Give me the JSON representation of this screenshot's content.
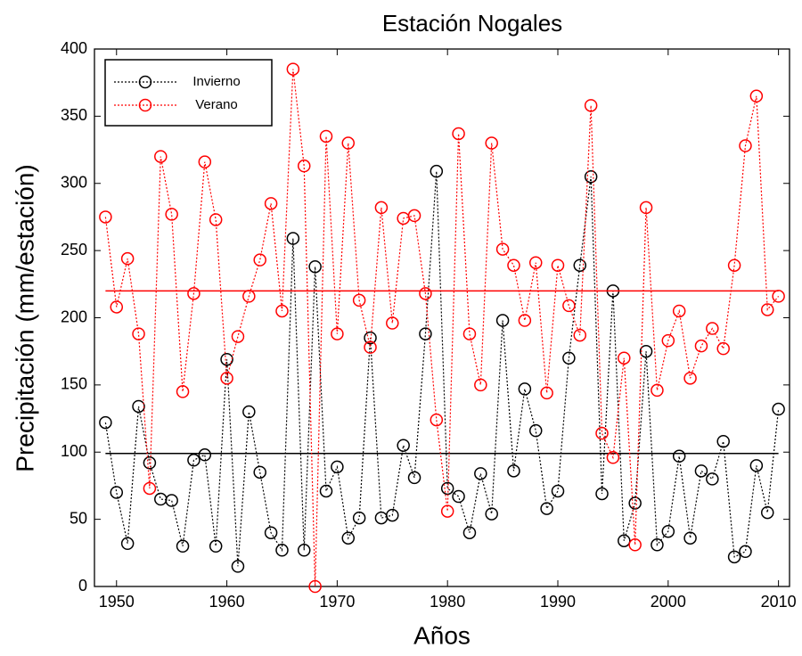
{
  "chart_data": {
    "type": "line",
    "title": "Estación Nogales",
    "xlabel": "Años",
    "ylabel": "Precipitación (mm/estación)",
    "x": [
      1949,
      1950,
      1951,
      1952,
      1953,
      1954,
      1955,
      1956,
      1957,
      1958,
      1959,
      1960,
      1961,
      1962,
      1963,
      1964,
      1965,
      1966,
      1967,
      1968,
      1969,
      1970,
      1971,
      1972,
      1973,
      1974,
      1975,
      1976,
      1977,
      1978,
      1979,
      1980,
      1981,
      1982,
      1983,
      1984,
      1985,
      1986,
      1987,
      1988,
      1989,
      1990,
      1991,
      1992,
      1993,
      1994,
      1995,
      1996,
      1997,
      1998,
      1999,
      2000,
      2001,
      2002,
      2003,
      2004,
      2005,
      2006,
      2007,
      2008,
      2009,
      2010
    ],
    "series": [
      {
        "name": "Invierno",
        "color": "#000000",
        "mean": 99,
        "values": [
          122,
          70,
          32,
          134,
          92,
          65,
          64,
          30,
          94,
          98,
          30,
          169,
          15,
          130,
          85,
          40,
          27,
          259,
          27,
          238,
          71,
          89,
          36,
          51,
          185,
          51,
          53,
          105,
          81,
          188,
          309,
          73,
          67,
          40,
          84,
          54,
          198,
          86,
          147,
          116,
          58,
          71,
          170,
          239,
          305,
          69,
          220,
          34,
          62,
          175,
          31,
          41,
          97,
          36,
          86,
          80,
          108,
          22,
          26,
          90,
          55,
          132
        ]
      },
      {
        "name": "Verano",
        "color": "#ff0000",
        "mean": 220,
        "values": [
          275,
          208,
          244,
          188,
          73,
          320,
          277,
          145,
          218,
          316,
          273,
          155,
          186,
          216,
          243,
          285,
          205,
          385,
          313,
          0,
          335,
          188,
          330,
          213,
          178,
          282,
          196,
          274,
          276,
          218,
          124,
          56,
          337,
          188,
          150,
          330,
          251,
          239,
          198,
          241,
          144,
          239,
          209,
          187,
          358,
          114,
          96,
          170,
          31,
          282,
          146,
          183,
          205,
          155,
          179,
          192,
          177,
          239,
          328,
          365,
          206,
          216
        ]
      }
    ],
    "xlim": [
      1948,
      2011
    ],
    "xticks": [
      1950,
      1960,
      1970,
      1980,
      1990,
      2000,
      2010
    ],
    "ylim": [
      0,
      400
    ],
    "yticks": [
      0,
      50,
      100,
      150,
      200,
      250,
      300,
      350,
      400
    ]
  }
}
